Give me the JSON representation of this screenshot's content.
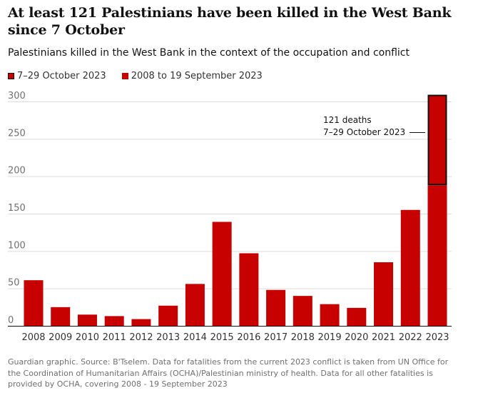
{
  "header": {
    "title": "At least 121 Palestinians have been killed in the West Bank since 7 October",
    "subtitle": "Palestinians killed in the West Bank in the context of the occupation and conflict"
  },
  "legend": {
    "items": [
      {
        "label": "7–29 October 2023",
        "style": "outlined"
      },
      {
        "label": "2008 to 19 September 2023",
        "style": "solid"
      }
    ]
  },
  "annotation": {
    "line1": "121 deaths",
    "line2": "7–29 October 2023"
  },
  "footer": {
    "source": "Guardian graphic. Source: B'Tselem. Data for fatalities from the current 2023 conflict is taken from UN Office for the Coordination of Humanitarian Affairs (OCHA)/Palestinian ministry of health. Data for all other fatalities is provided by OCHA, covering 2008 - 19 September 2023"
  },
  "colors": {
    "bar": "#c70000",
    "outline": "#121212",
    "grid": "#dcdcdc",
    "axis": "#121212"
  },
  "chart_data": {
    "type": "bar",
    "stacked": true,
    "title": "At least 121 Palestinians have been killed in the West Bank since 7 October",
    "subtitle": "Palestinians killed in the West Bank in the context of the occupation and conflict",
    "categories": [
      "2008",
      "2009",
      "2010",
      "2011",
      "2012",
      "2013",
      "2014",
      "2015",
      "2016",
      "2017",
      "2018",
      "2019",
      "2020",
      "2021",
      "2022",
      "2023"
    ],
    "series": [
      {
        "name": "2008 to 19 September 2023",
        "values": [
          61,
          25,
          15,
          13,
          9,
          27,
          56,
          139,
          97,
          48,
          40,
          29,
          24,
          85,
          155,
          188
        ]
      },
      {
        "name": "7–29 October 2023",
        "values": [
          0,
          0,
          0,
          0,
          0,
          0,
          0,
          0,
          0,
          0,
          0,
          0,
          0,
          0,
          0,
          121
        ]
      }
    ],
    "yticks": [
      0,
      50,
      100,
      150,
      200,
      250,
      300
    ],
    "ylim": [
      0,
      300
    ],
    "xlabel": "",
    "ylabel": "",
    "grid": true,
    "legend": "top-left"
  }
}
